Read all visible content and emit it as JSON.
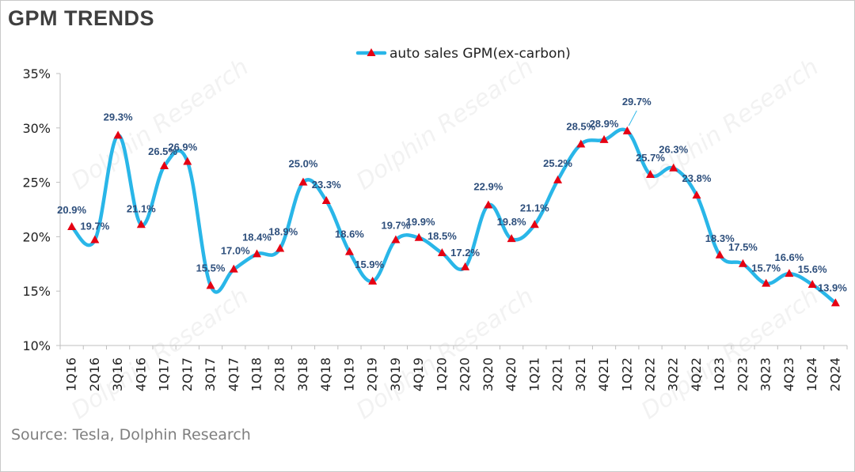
{
  "title": "GPM TRENDS",
  "source": "Source: Tesla, Dolphin Research",
  "watermark": "Dolphin Research",
  "colors": {
    "line": "#29b6e8",
    "marker": "#e60012",
    "label": "#2e4f7c"
  },
  "chart_data": {
    "type": "line",
    "title": "GPM TRENDS",
    "xlabel": "",
    "ylabel": "",
    "ylim": [
      10,
      35
    ],
    "yticks": [
      "10%",
      "15%",
      "20%",
      "25%",
      "30%",
      "35%"
    ],
    "legend_position": "top-center",
    "categories": [
      "1Q16",
      "2Q16",
      "3Q16",
      "4Q16",
      "1Q17",
      "2Q17",
      "3Q17",
      "4Q17",
      "1Q18",
      "2Q18",
      "3Q18",
      "4Q18",
      "1Q19",
      "2Q19",
      "3Q19",
      "4Q19",
      "1Q20",
      "2Q20",
      "3Q20",
      "4Q20",
      "1Q21",
      "2Q21",
      "3Q21",
      "4Q21",
      "1Q22",
      "2Q22",
      "3Q22",
      "4Q22",
      "1Q23",
      "2Q23",
      "3Q23",
      "4Q23",
      "1Q24",
      "2Q24"
    ],
    "series": [
      {
        "name": "auto sales GPM(ex-carbon)",
        "values": [
          20.9,
          19.7,
          29.3,
          21.1,
          26.5,
          26.9,
          15.5,
          17.0,
          18.4,
          18.9,
          25.0,
          23.3,
          18.6,
          15.9,
          19.7,
          19.9,
          18.5,
          17.2,
          22.9,
          19.8,
          21.1,
          25.2,
          28.5,
          28.9,
          29.7,
          25.7,
          26.3,
          23.8,
          18.3,
          17.5,
          15.7,
          16.6,
          15.6,
          13.9
        ],
        "labels": [
          "20.9%",
          "19.7%",
          "29.3%",
          "21.1%",
          "26.5%",
          "26.9%",
          "15.5%",
          "17.0%",
          "18.4%",
          "18.9%",
          "25.0%",
          "23.3%",
          "18.6%",
          "15.9%",
          "19.7%",
          "19.9%",
          "18.5%",
          "17.2%",
          "22.9%",
          "19.8%",
          "21.1%",
          "25.2%",
          "28.5%",
          "28.9%",
          "29.7%",
          "25.7%",
          "26.3%",
          "23.8%",
          "18.3%",
          "17.5%",
          "15.7%",
          "16.6%",
          "15.6%",
          "13.9%"
        ]
      }
    ]
  }
}
